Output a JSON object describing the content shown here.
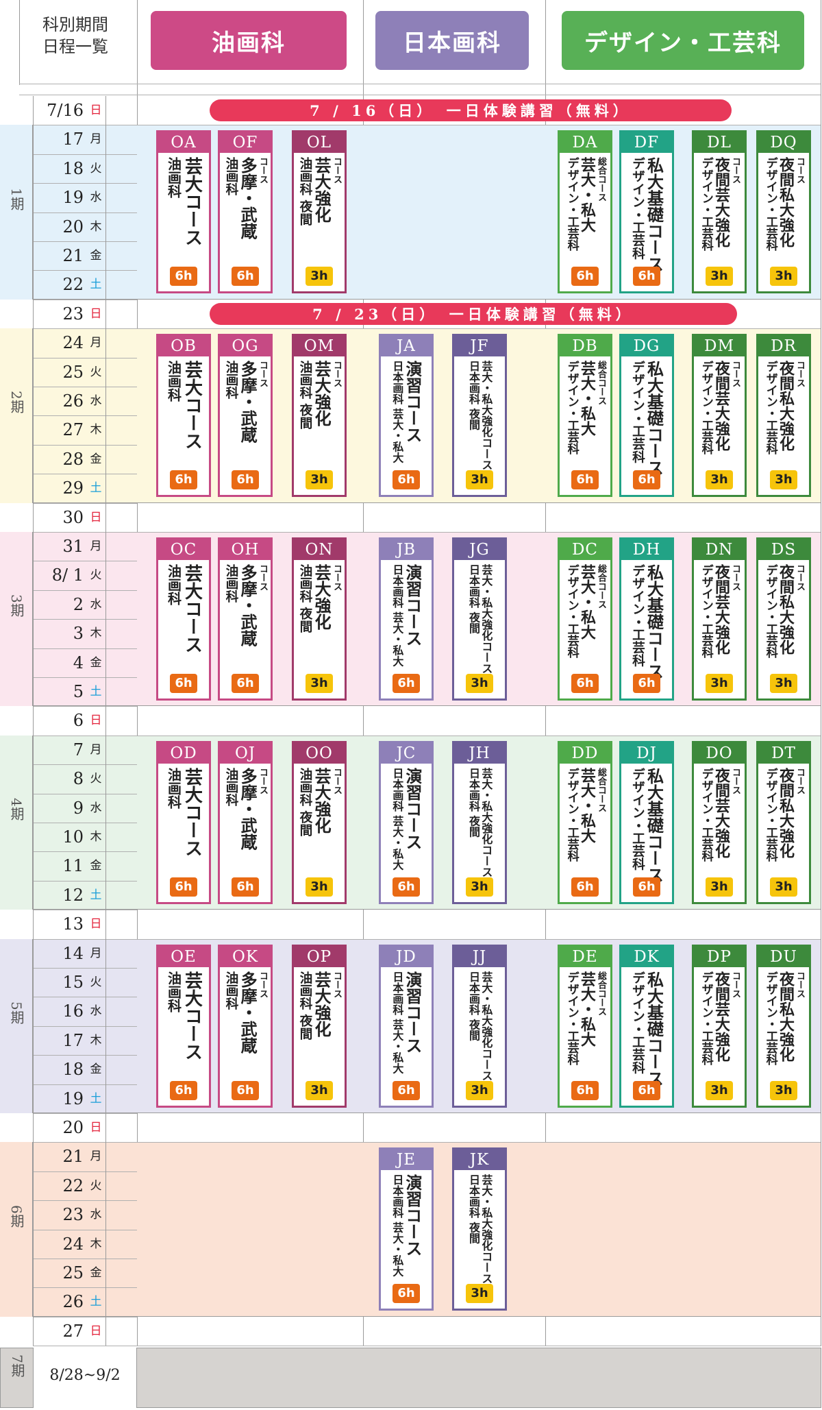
{
  "header": {
    "title_line1": "科別期間",
    "title_line2": "日程一覧",
    "departments": [
      {
        "name": "油画科",
        "color": "#cd4a86"
      },
      {
        "name": "日本画科",
        "color": "#8e80b8"
      },
      {
        "name": "デザイン・工芸科",
        "color": "#58b056"
      }
    ]
  },
  "events": [
    {
      "label": "7 / 16（日）　一日体験講習（無料）"
    },
    {
      "label": "7 / 23（日）　一日体験講習（無料）"
    }
  ],
  "days": [
    {
      "date": "7/16",
      "wd": "日"
    },
    {
      "date": "17",
      "wd": "月"
    },
    {
      "date": "18",
      "wd": "火"
    },
    {
      "date": "19",
      "wd": "水"
    },
    {
      "date": "20",
      "wd": "木"
    },
    {
      "date": "21",
      "wd": "金"
    },
    {
      "date": "22",
      "wd": "土"
    },
    {
      "date": "23",
      "wd": "日"
    },
    {
      "date": "24",
      "wd": "月"
    },
    {
      "date": "25",
      "wd": "火"
    },
    {
      "date": "26",
      "wd": "水"
    },
    {
      "date": "27",
      "wd": "木"
    },
    {
      "date": "28",
      "wd": "金"
    },
    {
      "date": "29",
      "wd": "土"
    },
    {
      "date": "30",
      "wd": "日"
    },
    {
      "date": "31",
      "wd": "月"
    },
    {
      "date": "8/ 1",
      "wd": "火"
    },
    {
      "date": "2",
      "wd": "水"
    },
    {
      "date": "3",
      "wd": "木"
    },
    {
      "date": "4",
      "wd": "金"
    },
    {
      "date": "5",
      "wd": "土"
    },
    {
      "date": "6",
      "wd": "日"
    },
    {
      "date": "7",
      "wd": "月"
    },
    {
      "date": "8",
      "wd": "火"
    },
    {
      "date": "9",
      "wd": "水"
    },
    {
      "date": "10",
      "wd": "木"
    },
    {
      "date": "11",
      "wd": "金"
    },
    {
      "date": "12",
      "wd": "土"
    },
    {
      "date": "13",
      "wd": "日"
    },
    {
      "date": "14",
      "wd": "月"
    },
    {
      "date": "15",
      "wd": "火"
    },
    {
      "date": "16",
      "wd": "水"
    },
    {
      "date": "17",
      "wd": "木"
    },
    {
      "date": "18",
      "wd": "金"
    },
    {
      "date": "19",
      "wd": "土"
    },
    {
      "date": "20",
      "wd": "日"
    },
    {
      "date": "21",
      "wd": "月"
    },
    {
      "date": "22",
      "wd": "火"
    },
    {
      "date": "23",
      "wd": "水"
    },
    {
      "date": "24",
      "wd": "木"
    },
    {
      "date": "25",
      "wd": "金"
    },
    {
      "date": "26",
      "wd": "土"
    },
    {
      "date": "27",
      "wd": "日"
    }
  ],
  "periods": [
    {
      "label": "1期",
      "bg": "#e3f1fa"
    },
    {
      "label": "2期",
      "bg": "#fdf8de"
    },
    {
      "label": "3期",
      "bg": "#fbe6ee"
    },
    {
      "label": "4期",
      "bg": "#e7f3e8"
    },
    {
      "label": "5期",
      "bg": "#e5e4f2"
    },
    {
      "label": "6期",
      "bg": "#fbe2d5"
    }
  ],
  "period7": {
    "label": "7期",
    "dates": "8/28~9/2",
    "bg": "#d6d3d0"
  },
  "courses": [
    [
      {
        "code": "OA",
        "c1": "油画科",
        "c2": "芸大コース",
        "h": "6h",
        "t": "oil1"
      },
      {
        "code": "OF",
        "c1": "油画科",
        "c2": "多摩・武蔵",
        "c3": "コース",
        "h": "6h",
        "t": "oil2"
      },
      {
        "code": "OL",
        "c1": "油画科 夜間",
        "c2": "芸大強化",
        "c3": "コース",
        "h": "3h",
        "t": "oil3"
      },
      {
        "code": "DA",
        "c1": "デザイン・工芸科",
        "c2": "芸大・私大",
        "c3": "総合コース",
        "h": "6h",
        "t": "d1"
      },
      {
        "code": "DF",
        "c1": "デザイン・工芸科",
        "c2": "私大基礎コース",
        "h": "6h",
        "t": "d2"
      },
      {
        "code": "DL",
        "c1": "デザイン・工芸科",
        "c2": "夜間芸大強化",
        "c3": "コース",
        "h": "3h",
        "t": "d3"
      },
      {
        "code": "DQ",
        "c1": "デザイン・工芸科",
        "c2": "夜間私大強化",
        "c3": "コース",
        "h": "3h",
        "t": "d4"
      }
    ],
    [
      {
        "code": "OB",
        "c1": "油画科",
        "c2": "芸大コース",
        "h": "6h",
        "t": "oil1"
      },
      {
        "code": "OG",
        "c1": "油画科",
        "c2": "多摩・武蔵",
        "c3": "コース",
        "h": "6h",
        "t": "oil2"
      },
      {
        "code": "OM",
        "c1": "油画科 夜間",
        "c2": "芸大強化",
        "c3": "コース",
        "h": "3h",
        "t": "oil3"
      },
      {
        "code": "JA",
        "c1": "日本画科 芸大・私大",
        "c2": "演習コース",
        "h": "6h",
        "t": "j1"
      },
      {
        "code": "JF",
        "c1": "日本画科 夜間",
        "c2": "芸大・私大強化コース",
        "h": "3h",
        "t": "j2"
      },
      {
        "code": "DB",
        "c1": "デザイン・工芸科",
        "c2": "芸大・私大",
        "c3": "総合コース",
        "h": "6h",
        "t": "d1"
      },
      {
        "code": "DG",
        "c1": "デザイン・工芸科",
        "c2": "私大基礎コース",
        "h": "6h",
        "t": "d2"
      },
      {
        "code": "DM",
        "c1": "デザイン・工芸科",
        "c2": "夜間芸大強化",
        "c3": "コース",
        "h": "3h",
        "t": "d3"
      },
      {
        "code": "DR",
        "c1": "デザイン・工芸科",
        "c2": "夜間私大強化",
        "c3": "コース",
        "h": "3h",
        "t": "d4"
      }
    ],
    [
      {
        "code": "OC",
        "c1": "油画科",
        "c2": "芸大コース",
        "h": "6h",
        "t": "oil1"
      },
      {
        "code": "OH",
        "c1": "油画科",
        "c2": "多摩・武蔵",
        "c3": "コース",
        "h": "6h",
        "t": "oil2"
      },
      {
        "code": "ON",
        "c1": "油画科 夜間",
        "c2": "芸大強化",
        "c3": "コース",
        "h": "3h",
        "t": "oil3"
      },
      {
        "code": "JB",
        "c1": "日本画科 芸大・私大",
        "c2": "演習コース",
        "h": "6h",
        "t": "j1"
      },
      {
        "code": "JG",
        "c1": "日本画科 夜間",
        "c2": "芸大・私大強化コース",
        "h": "3h",
        "t": "j2"
      },
      {
        "code": "DC",
        "c1": "デザイン・工芸科",
        "c2": "芸大・私大",
        "c3": "総合コース",
        "h": "6h",
        "t": "d1"
      },
      {
        "code": "DH",
        "c1": "デザイン・工芸科",
        "c2": "私大基礎コース",
        "h": "6h",
        "t": "d2"
      },
      {
        "code": "DN",
        "c1": "デザイン・工芸科",
        "c2": "夜間芸大強化",
        "c3": "コース",
        "h": "3h",
        "t": "d3"
      },
      {
        "code": "DS",
        "c1": "デザイン・工芸科",
        "c2": "夜間私大強化",
        "c3": "コース",
        "h": "3h",
        "t": "d4"
      }
    ],
    [
      {
        "code": "OD",
        "c1": "油画科",
        "c2": "芸大コース",
        "h": "6h",
        "t": "oil1"
      },
      {
        "code": "OJ",
        "c1": "油画科",
        "c2": "多摩・武蔵",
        "c3": "コース",
        "h": "6h",
        "t": "oil2"
      },
      {
        "code": "OO",
        "c1": "油画科 夜間",
        "c2": "芸大強化",
        "c3": "コース",
        "h": "3h",
        "t": "oil3"
      },
      {
        "code": "JC",
        "c1": "日本画科 芸大・私大",
        "c2": "演習コース",
        "h": "6h",
        "t": "j1"
      },
      {
        "code": "JH",
        "c1": "日本画科 夜間",
        "c2": "芸大・私大強化コース",
        "h": "3h",
        "t": "j2"
      },
      {
        "code": "DD",
        "c1": "デザイン・工芸科",
        "c2": "芸大・私大",
        "c3": "総合コース",
        "h": "6h",
        "t": "d1"
      },
      {
        "code": "DJ",
        "c1": "デザイン・工芸科",
        "c2": "私大基礎コース",
        "h": "6h",
        "t": "d2"
      },
      {
        "code": "DO",
        "c1": "デザイン・工芸科",
        "c2": "夜間芸大強化",
        "c3": "コース",
        "h": "3h",
        "t": "d3"
      },
      {
        "code": "DT",
        "c1": "デザイン・工芸科",
        "c2": "夜間私大強化",
        "c3": "コース",
        "h": "3h",
        "t": "d4"
      }
    ],
    [
      {
        "code": "OE",
        "c1": "油画科",
        "c2": "芸大コース",
        "h": "6h",
        "t": "oil1"
      },
      {
        "code": "OK",
        "c1": "油画科",
        "c2": "多摩・武蔵",
        "c3": "コース",
        "h": "6h",
        "t": "oil2"
      },
      {
        "code": "OP",
        "c1": "油画科 夜間",
        "c2": "芸大強化",
        "c3": "コース",
        "h": "3h",
        "t": "oil3"
      },
      {
        "code": "JD",
        "c1": "日本画科 芸大・私大",
        "c2": "演習コース",
        "h": "6h",
        "t": "j1"
      },
      {
        "code": "JJ",
        "c1": "日本画科 夜間",
        "c2": "芸大・私大強化コース",
        "h": "3h",
        "t": "j2"
      },
      {
        "code": "DE",
        "c1": "デザイン・工芸科",
        "c2": "芸大・私大",
        "c3": "総合コース",
        "h": "6h",
        "t": "d1"
      },
      {
        "code": "DK",
        "c1": "デザイン・工芸科",
        "c2": "私大基礎コース",
        "h": "6h",
        "t": "d2"
      },
      {
        "code": "DP",
        "c1": "デザイン・工芸科",
        "c2": "夜間芸大強化",
        "c3": "コース",
        "h": "3h",
        "t": "d3"
      },
      {
        "code": "DU",
        "c1": "デザイン・工芸科",
        "c2": "夜間私大強化",
        "c3": "コース",
        "h": "3h",
        "t": "d4"
      }
    ],
    [
      {
        "code": "JE",
        "c1": "日本画科 芸大・私大",
        "c2": "演習コース",
        "h": "6h",
        "t": "j1"
      },
      {
        "code": "JK",
        "c1": "日本画科 夜間",
        "c2": "芸大・私大強化コース",
        "h": "3h",
        "t": "j2"
      }
    ]
  ],
  "theme": {
    "oil": "#c64a84",
    "oil_dark": "#a13a6a",
    "jp": "#8e80b8",
    "jp_dark": "#6c5e98",
    "d_light": "#4faa4a",
    "d_teal": "#22a386",
    "d_dark": "#3d8a3c",
    "weekday_sat": "#1a9ed8",
    "weekday_sun": "#e3233b"
  }
}
